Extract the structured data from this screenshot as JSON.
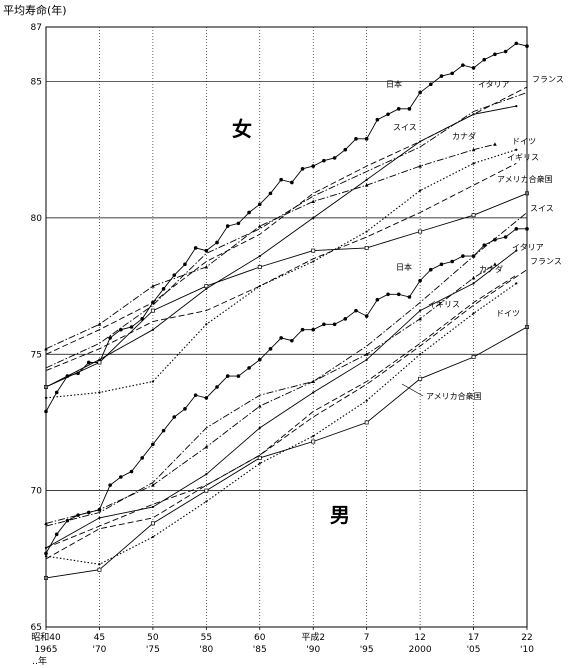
{
  "chart_data": {
    "type": "line",
    "ylabel": "平均寿命(年)",
    "ylim": [
      65,
      87
    ],
    "yticks": [
      65,
      70,
      75,
      80,
      85,
      87
    ],
    "xlim": [
      1965,
      2010
    ],
    "xticks": [
      {
        "x": 1965,
        "top": "昭和40",
        "bottom": "1965"
      },
      {
        "x": 1970,
        "top": "45",
        "bottom": "'70"
      },
      {
        "x": 1975,
        "top": "50",
        "bottom": "'75"
      },
      {
        "x": 1980,
        "top": "55",
        "bottom": "'80"
      },
      {
        "x": 1985,
        "top": "60",
        "bottom": "'85"
      },
      {
        "x": 1990,
        "top": "平成2",
        "bottom": "'90"
      },
      {
        "x": 1995,
        "top": "7",
        "bottom": "'95"
      },
      {
        "x": 2000,
        "top": "12",
        "bottom": "2000"
      },
      {
        "x": 2005,
        "top": "17",
        "bottom": "'05"
      },
      {
        "x": 2010,
        "top": "22",
        "bottom": "'10"
      }
    ],
    "xaxis_suffix": "年",
    "grid": true,
    "panel_labels": {
      "female": "女",
      "male": "男"
    },
    "series": [
      {
        "name": "日本",
        "sex": "female",
        "style": "solid",
        "marker": "circle",
        "x": [
          1965,
          1966,
          1967,
          1968,
          1969,
          1970,
          1971,
          1972,
          1973,
          1974,
          1975,
          1976,
          1977,
          1978,
          1979,
          1980,
          1981,
          1982,
          1983,
          1984,
          1985,
          1986,
          1987,
          1988,
          1989,
          1990,
          1991,
          1992,
          1993,
          1994,
          1995,
          1996,
          1997,
          1998,
          1999,
          2000,
          2001,
          2002,
          2003,
          2004,
          2005,
          2006,
          2007,
          2008,
          2009,
          2010
        ],
        "y": [
          72.9,
          73.6,
          74.2,
          74.3,
          74.7,
          74.7,
          75.6,
          75.9,
          76.0,
          76.3,
          76.9,
          77.4,
          77.9,
          78.3,
          78.9,
          78.8,
          79.1,
          79.7,
          79.8,
          80.2,
          80.5,
          80.9,
          81.4,
          81.3,
          81.8,
          81.9,
          82.1,
          82.2,
          82.5,
          82.9,
          82.9,
          83.6,
          83.8,
          84.0,
          84.0,
          84.6,
          84.9,
          85.2,
          85.3,
          85.6,
          85.5,
          85.8,
          86.0,
          86.1,
          86.4,
          86.3
        ]
      },
      {
        "name": "フランス",
        "sex": "female",
        "style": "dash",
        "marker": "none",
        "x": [
          1965,
          1970,
          1975,
          1980,
          1985,
          1990,
          1995,
          2000,
          2005,
          2010
        ],
        "y": [
          75.0,
          75.9,
          76.9,
          78.4,
          79.4,
          80.9,
          81.9,
          82.8,
          83.8,
          84.8
        ]
      },
      {
        "name": "イタリア",
        "sex": "female",
        "style": "solid",
        "marker": "dot",
        "x": [
          1965,
          1970,
          1975,
          1980,
          1985,
          1990,
          1995,
          2000,
          2005,
          2009
        ],
        "y": [
          73.8,
          74.8,
          75.9,
          77.4,
          78.6,
          80.0,
          81.4,
          82.8,
          83.8,
          84.1
        ]
      },
      {
        "name": "スイス",
        "sex": "female",
        "style": "dashdot",
        "marker": "none",
        "x": [
          1965,
          1970,
          1975,
          1980,
          1985,
          1990,
          1995,
          2000,
          2005,
          2010
        ],
        "y": [
          74.5,
          75.4,
          76.8,
          78.7,
          79.6,
          80.8,
          81.7,
          82.6,
          83.9,
          84.6
        ]
      },
      {
        "name": "カナダ",
        "sex": "female",
        "style": "dashdot",
        "marker": "triangle",
        "x": [
          1965,
          1970,
          1975,
          1980,
          1985,
          1990,
          1995,
          2000,
          2005,
          2007
        ],
        "y": [
          75.2,
          76.1,
          77.5,
          78.2,
          79.7,
          80.6,
          81.2,
          81.9,
          82.5,
          82.7
        ]
      },
      {
        "name": "ドイツ",
        "sex": "female",
        "style": "dot",
        "marker": "dot",
        "x": [
          1965,
          1970,
          1975,
          1980,
          1985,
          1990,
          1995,
          2000,
          2005,
          2009
        ],
        "y": [
          73.4,
          73.6,
          74.0,
          76.1,
          77.5,
          78.4,
          79.5,
          81.0,
          82.0,
          82.5
        ]
      },
      {
        "name": "イギリス",
        "sex": "female",
        "style": "dash",
        "marker": "none",
        "x": [
          1965,
          1970,
          1975,
          1980,
          1985,
          1990,
          1995,
          2000,
          2005,
          2009
        ],
        "y": [
          74.4,
          75.2,
          76.2,
          76.6,
          77.5,
          78.5,
          79.3,
          80.2,
          81.2,
          82.0
        ]
      },
      {
        "name": "アメリカ合衆国",
        "sex": "female",
        "style": "solid",
        "marker": "square",
        "x": [
          1965,
          1970,
          1975,
          1980,
          1985,
          1990,
          1995,
          2000,
          2005,
          2010
        ],
        "y": [
          73.8,
          74.7,
          76.6,
          77.5,
          78.2,
          78.8,
          78.9,
          79.5,
          80.1,
          80.9
        ]
      },
      {
        "name": "日本",
        "sex": "male",
        "style": "solid",
        "marker": "circle",
        "x": [
          1965,
          1966,
          1967,
          1968,
          1969,
          1970,
          1971,
          1972,
          1973,
          1974,
          1975,
          1976,
          1977,
          1978,
          1979,
          1980,
          1981,
          1982,
          1983,
          1984,
          1985,
          1986,
          1987,
          1988,
          1989,
          1990,
          1991,
          1992,
          1993,
          1994,
          1995,
          1996,
          1997,
          1998,
          1999,
          2000,
          2001,
          2002,
          2003,
          2004,
          2005,
          2006,
          2007,
          2008,
          2009,
          2010
        ],
        "y": [
          67.7,
          68.4,
          68.9,
          69.1,
          69.2,
          69.3,
          70.2,
          70.5,
          70.7,
          71.2,
          71.7,
          72.2,
          72.7,
          73.0,
          73.5,
          73.4,
          73.8,
          74.2,
          74.2,
          74.5,
          74.8,
          75.2,
          75.6,
          75.5,
          75.9,
          75.9,
          76.1,
          76.1,
          76.3,
          76.6,
          76.4,
          77.0,
          77.2,
          77.2,
          77.1,
          77.7,
          78.1,
          78.3,
          78.4,
          78.6,
          78.6,
          79.0,
          79.2,
          79.3,
          79.6,
          79.6
        ]
      },
      {
        "name": "スイス",
        "sex": "male",
        "style": "dashdot",
        "marker": "none",
        "x": [
          1965,
          1970,
          1975,
          1980,
          1985,
          1990,
          1995,
          2000,
          2005,
          2010
        ],
        "y": [
          68.7,
          69.2,
          70.3,
          72.3,
          73.5,
          74.0,
          75.3,
          76.9,
          78.6,
          80.2
        ]
      },
      {
        "name": "イタリア",
        "sex": "male",
        "style": "solid",
        "marker": "dot",
        "x": [
          1965,
          1970,
          1975,
          1980,
          1985,
          1990,
          1995,
          2000,
          2005,
          2009
        ],
        "y": [
          67.9,
          69.0,
          69.4,
          70.6,
          72.3,
          73.6,
          74.8,
          76.6,
          77.6,
          78.8
        ]
      },
      {
        "name": "カナダ",
        "sex": "male",
        "style": "dashdot",
        "marker": "triangle",
        "x": [
          1965,
          1970,
          1975,
          1980,
          1985,
          1990,
          1995,
          2000,
          2005,
          2007
        ],
        "y": [
          68.8,
          69.3,
          70.2,
          71.6,
          73.1,
          74.0,
          75.0,
          76.3,
          77.8,
          78.3
        ]
      },
      {
        "name": "フランス",
        "sex": "male",
        "style": "dash",
        "marker": "none",
        "x": [
          1965,
          1970,
          1975,
          1980,
          1985,
          1990,
          1995,
          2000,
          2005,
          2010
        ],
        "y": [
          67.5,
          68.6,
          69.0,
          70.2,
          71.3,
          72.7,
          73.9,
          75.3,
          76.8,
          78.1
        ]
      },
      {
        "name": "イギリス",
        "sex": "male",
        "style": "dash",
        "marker": "none",
        "x": [
          1965,
          1970,
          1975,
          1980,
          1985,
          1990,
          1995,
          2000,
          2005,
          2009
        ],
        "y": [
          67.9,
          68.7,
          69.5,
          70.2,
          71.3,
          72.9,
          74.0,
          75.4,
          76.9,
          77.9
        ]
      },
      {
        "name": "ドイツ",
        "sex": "male",
        "style": "dot",
        "marker": "dot",
        "x": [
          1965,
          1970,
          1975,
          1980,
          1985,
          1990,
          1995,
          2000,
          2005,
          2009
        ],
        "y": [
          67.6,
          67.3,
          68.3,
          69.6,
          71.0,
          72.0,
          73.3,
          75.0,
          76.5,
          77.6
        ]
      },
      {
        "name": "アメリカ合衆国",
        "sex": "male",
        "style": "solid",
        "marker": "square",
        "x": [
          1965,
          1970,
          1975,
          1980,
          1985,
          1990,
          1995,
          2000,
          2005,
          2010
        ],
        "y": [
          66.8,
          67.1,
          68.8,
          70.0,
          71.2,
          71.8,
          72.5,
          74.1,
          74.9,
          76.0
        ]
      }
    ]
  }
}
